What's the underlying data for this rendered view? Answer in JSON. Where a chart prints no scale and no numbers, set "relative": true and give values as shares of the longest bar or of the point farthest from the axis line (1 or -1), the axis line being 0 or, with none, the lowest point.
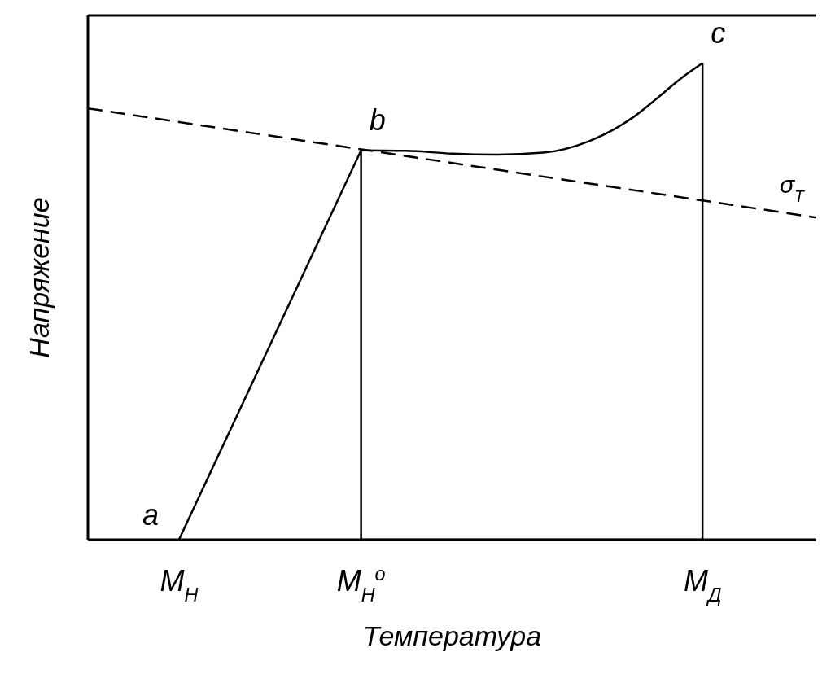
{
  "chart_data": {
    "type": "line",
    "relative": true,
    "xlabel": "Температура",
    "ylabel": "Напряжение",
    "legend": false,
    "marker": "none",
    "line_style": "solid",
    "categories": [
      null,
      null,
      null,
      null,
      "M$_{Н}$",
      null,
      null,
      null,
      null,
      null,
      null,
      null,
      "M$_{Н}$$^{о}$",
      null,
      null,
      null,
      null,
      null,
      null,
      null,
      null,
      null,
      null,
      null,
      null,
      null,
      null,
      "M$_{Д}$",
      null,
      null,
      null,
      null,
      null
    ],
    "series": [
      {
        "color": "#000000",
        "x": [
          "M$_{Н}$",
          "M$_{Н}$$^{о}$",
          "M$_{Н}$$^{о}$",
          "M$_{Д}$",
          "M$_{Д}$"
        ],
        "values": [
          0,
          0.817,
          0,
          0,
          1
        ]
      },
      {
        "color": "#000000",
        "values": [
          null,
          null,
          null,
          null,
          null,
          null,
          null,
          null,
          null,
          null,
          null,
          null,
          0.817,
          null,
          0.816,
          null,
          0.81,
          null,
          0.808,
          null,
          0.812,
          null,
          0.836,
          null,
          0.888,
          0.926,
          0.966,
          1,
          null,
          null,
          null,
          null,
          null
        ]
      },
      {
        "name": "σ$_{Т}$",
        "color": "#000000",
        "line_style": "dashed",
        "values": [
          0.905,
          null,
          null,
          null,
          null,
          null,
          null,
          null,
          null,
          null,
          null,
          null,
          null,
          null,
          null,
          null,
          null,
          null,
          null,
          null,
          null,
          null,
          null,
          null,
          null,
          null,
          null,
          null,
          null,
          null,
          null,
          null,
          0.676
        ]
      }
    ],
    "annotations": [
      {
        "text": "a",
        "x": "M$_{Н}$",
        "y": 0
      },
      {
        "text": "b",
        "x": "M$_{Н}$$^{о}$",
        "y": 0.817
      },
      {
        "text": "c",
        "x": "M$_{Д}$",
        "y": 1
      }
    ]
  }
}
